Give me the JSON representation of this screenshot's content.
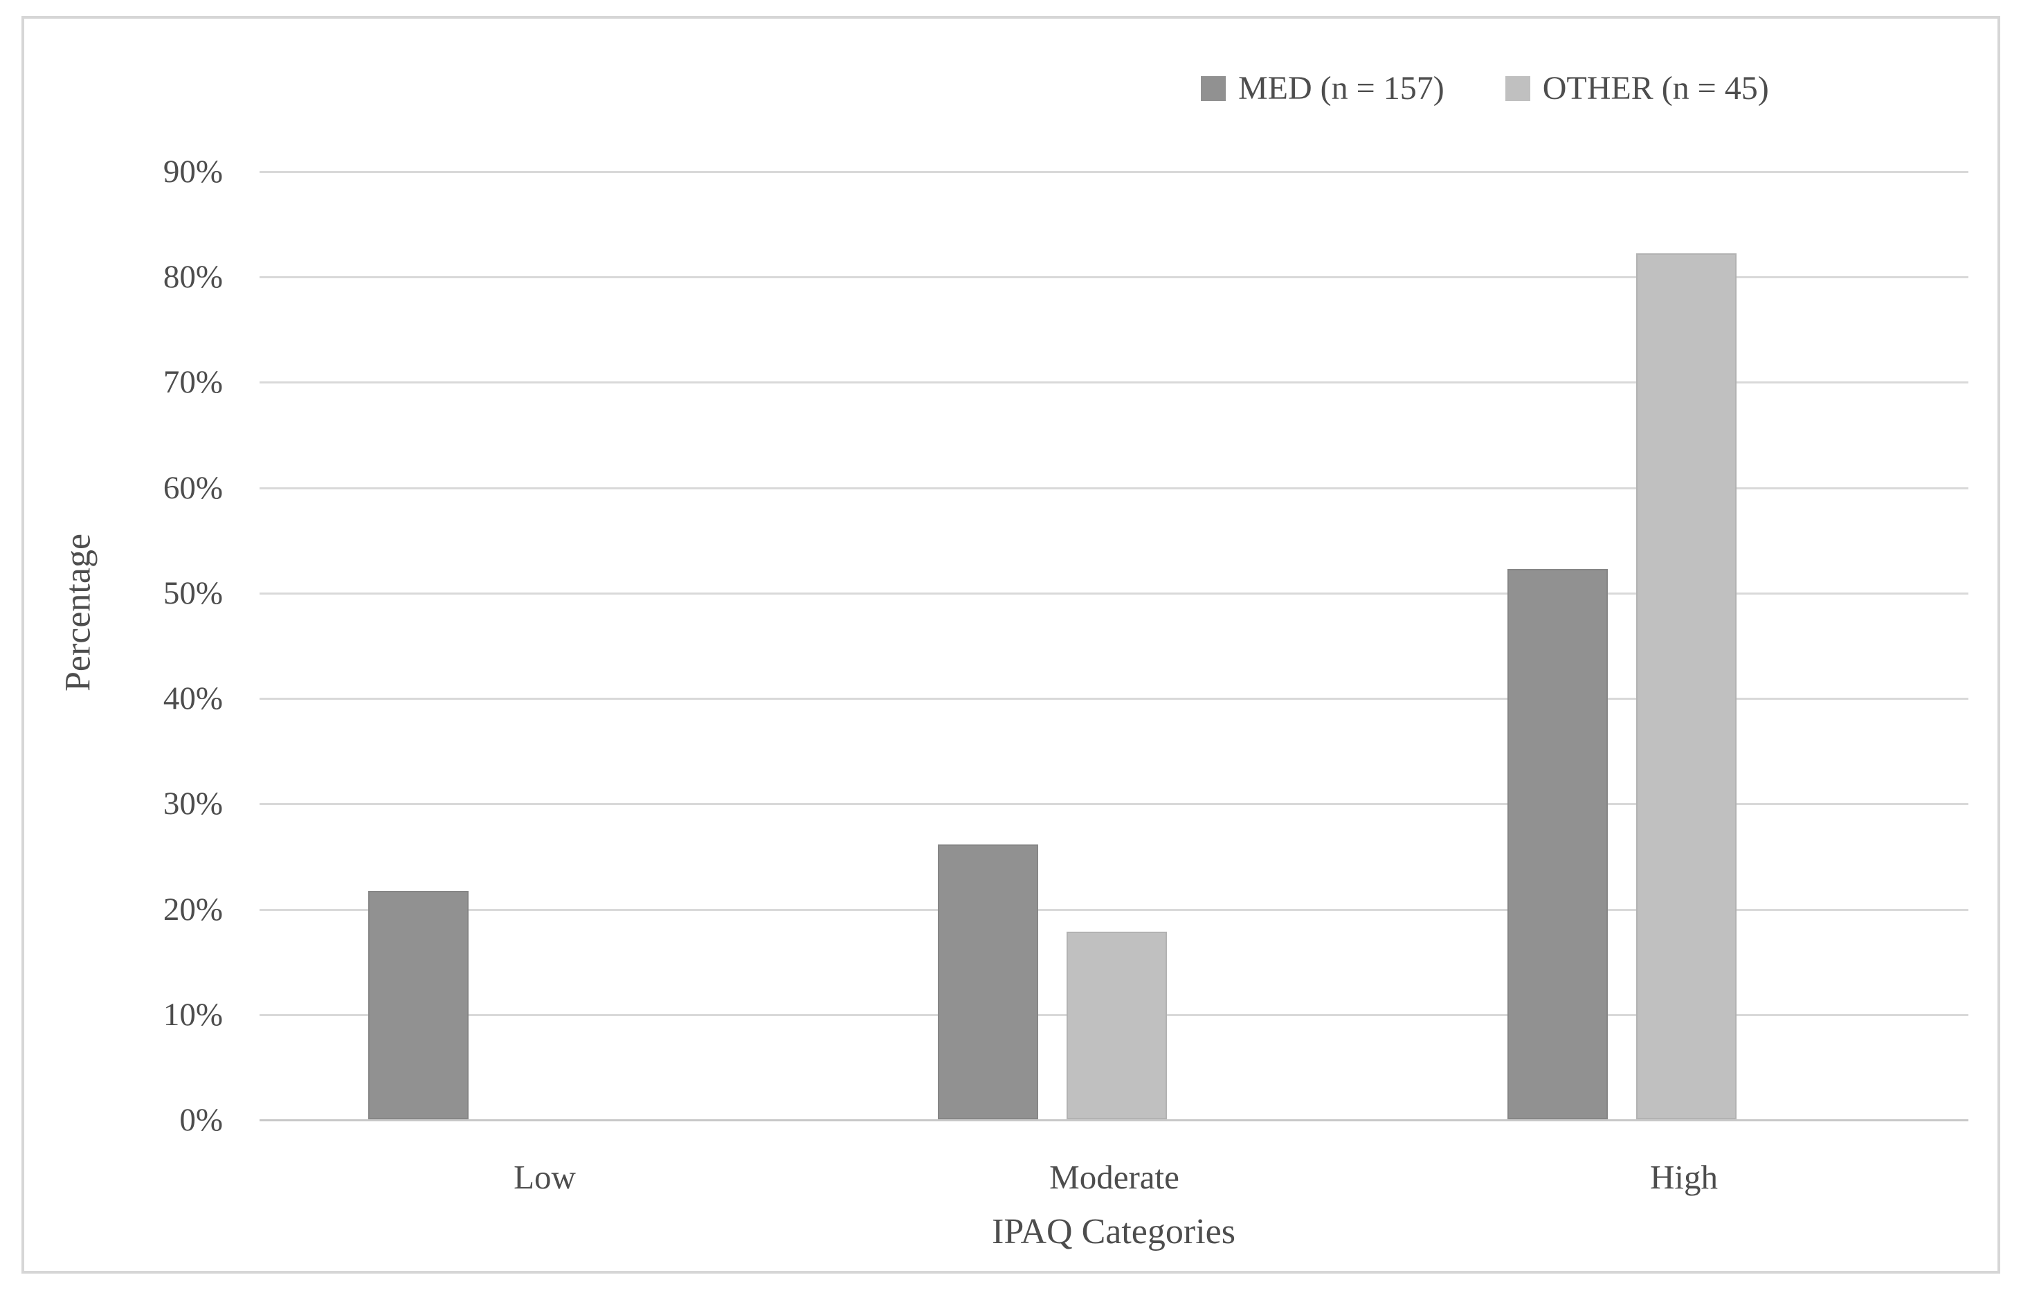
{
  "chart_data": {
    "type": "bar",
    "categories": [
      "Low",
      "Moderate",
      "High"
    ],
    "series": [
      {
        "name": "MED (n = 157)",
        "color": "#919191",
        "border_color": "#868686",
        "values": [
          21.7,
          26.1,
          52.2
        ]
      },
      {
        "name": "OTHER (n = 45)",
        "color": "#c0c0c0",
        "border_color": "#b2b2b2",
        "values": [
          0,
          17.8,
          82.2
        ]
      }
    ],
    "title": "",
    "xlabel": "IPAQ Categories",
    "ylabel": "Percentage",
    "ylim": [
      0,
      90
    ],
    "ytick_step": 10,
    "ytick_labels": [
      "0%",
      "10%",
      "20%",
      "30%",
      "40%",
      "50%",
      "60%",
      "70%",
      "80%",
      "90%"
    ],
    "ytick_format": "percent",
    "grid": true,
    "legend_position": "top-right",
    "colors": {
      "gridline": "#d9d9d9",
      "axis_line": "#c8c8c8",
      "text": "#4d4d4d",
      "frame_border": "#d6d6d6",
      "background": "#ffffff"
    }
  }
}
